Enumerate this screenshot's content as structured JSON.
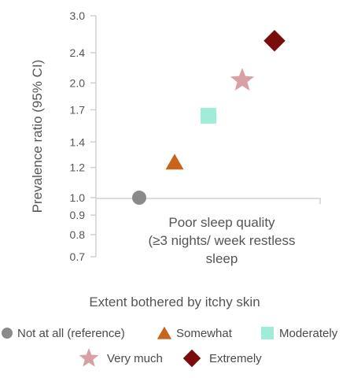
{
  "chart_data": {
    "type": "scatter",
    "ylabel": "Prevalence ratio (95% CI)",
    "xlabel": "Extent bothered by itchy skin",
    "y_scale": "log",
    "ylim": [
      0.7,
      3.0
    ],
    "y_ticks": [
      {
        "value": 0.7,
        "label": "0.7"
      },
      {
        "value": 0.8,
        "label": "0.8"
      },
      {
        "value": 0.9,
        "label": "0.9"
      },
      {
        "value": 1.0,
        "label": "1.0"
      },
      {
        "value": 1.2,
        "label": "1.2"
      },
      {
        "value": 1.4,
        "label": "1.4"
      },
      {
        "value": 1.7,
        "label": "1.7"
      },
      {
        "value": 2.0,
        "label": "2.0"
      },
      {
        "value": 2.4,
        "label": "2.4"
      },
      {
        "value": 3.0,
        "label": "3.0"
      }
    ],
    "category_lines": [
      "Poor sleep quality",
      "(≥3 nights/ week restless",
      "sleep"
    ],
    "grid": false,
    "legend_position": "bottom",
    "series": [
      {
        "name": "Not at all (reference)",
        "value": 1.0,
        "marker": "circle",
        "color": "#8a8a8a"
      },
      {
        "name": "Somewhat",
        "value": 1.24,
        "marker": "triangle",
        "color": "#c8651b"
      },
      {
        "name": "Moderately",
        "value": 1.64,
        "marker": "square",
        "color": "#9fecd9"
      },
      {
        "name": "Very much",
        "value": 2.03,
        "marker": "star",
        "color": "#d9a0a4"
      },
      {
        "name": "Extremely",
        "value": 2.58,
        "marker": "diamond",
        "color": "#7a0c0c"
      }
    ]
  }
}
